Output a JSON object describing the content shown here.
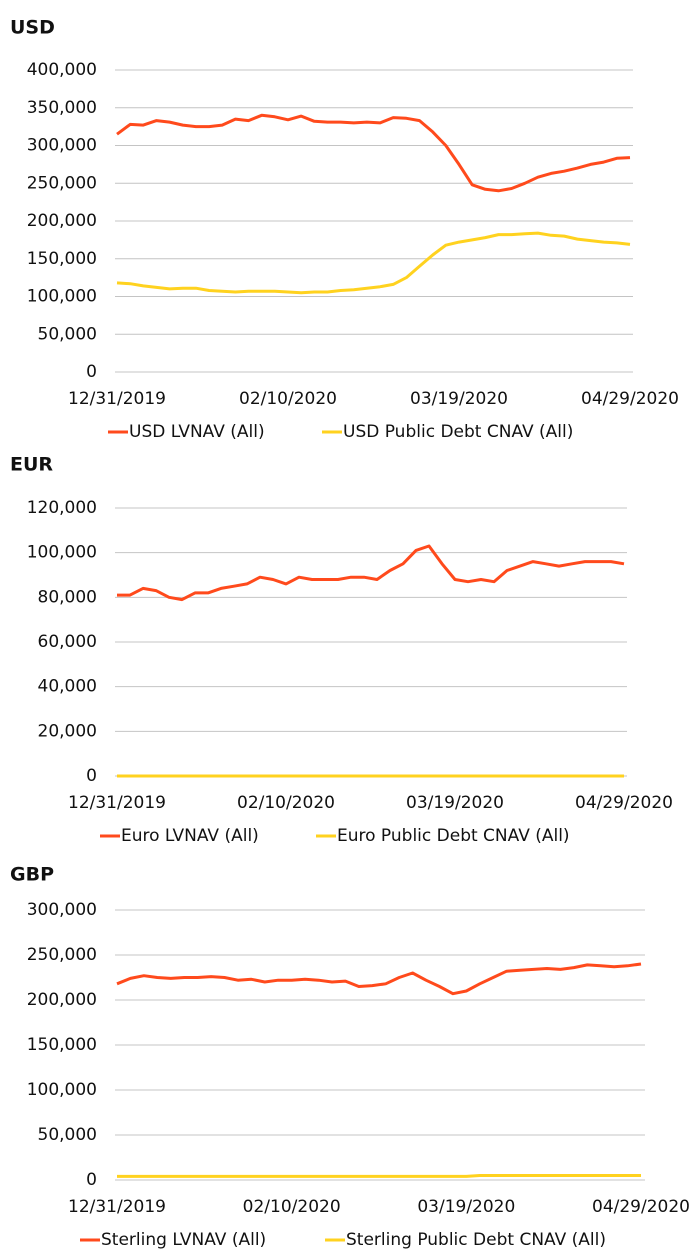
{
  "chart_data": [
    {
      "type": "line",
      "title": "USD",
      "categories": [
        "12/31/2019",
        null,
        null,
        null,
        null,
        null,
        null,
        null,
        null,
        null,
        null,
        null,
        null,
        "02/10/2020",
        null,
        null,
        null,
        null,
        null,
        null,
        null,
        null,
        null,
        null,
        null,
        null,
        "03/19/2020",
        null,
        null,
        null,
        null,
        null,
        null,
        null,
        null,
        null,
        null,
        null,
        null,
        "04/29/2020"
      ],
      "series": [
        {
          "name": "USD LVNAV (All)",
          "color": "#ff4a1c",
          "values": [
            315000,
            328000,
            327000,
            333000,
            331000,
            327000,
            325000,
            325000,
            327000,
            335000,
            333000,
            340000,
            338000,
            334000,
            339000,
            332000,
            331000,
            331000,
            330000,
            331000,
            330000,
            337000,
            336000,
            333000,
            318000,
            300000,
            275000,
            248000,
            242000,
            240000,
            243000,
            250000,
            258000,
            263000,
            266000,
            270000,
            275000,
            278000,
            283000,
            284000
          ]
        },
        {
          "name": "USD Public Debt CNAV (All)",
          "color": "#ffd21f",
          "values": [
            118000,
            117000,
            114000,
            112000,
            110000,
            111000,
            111000,
            108000,
            107000,
            106000,
            107000,
            107000,
            107000,
            106000,
            105000,
            106000,
            106000,
            108000,
            109000,
            111000,
            113000,
            116000,
            125000,
            140000,
            155000,
            168000,
            172000,
            175000,
            178000,
            182000,
            182000,
            183000,
            184000,
            181000,
            180000,
            176000,
            174000,
            172000,
            171000,
            169000
          ]
        }
      ],
      "ylim": [
        0,
        400000
      ],
      "yticks": [
        0,
        {
          "value": 50000,
          "label": "50,000"
        },
        {
          "value": 100000,
          "label": "100,000"
        },
        {
          "value": 150000,
          "label": "150,000"
        },
        {
          "value": 200000,
          "label": "200,000"
        },
        {
          "value": 250000,
          "label": "250,000"
        },
        {
          "value": 300000,
          "label": "300,000"
        },
        {
          "value": 350000,
          "label": "350,000"
        },
        {
          "value": 400000,
          "label": "400,000"
        }
      ],
      "grid": true,
      "legend": "bottom"
    },
    {
      "type": "line",
      "title": "EUR",
      "categories": [
        "12/31/2019",
        null,
        null,
        null,
        null,
        null,
        null,
        null,
        null,
        null,
        null,
        null,
        null,
        "02/10/2020",
        null,
        null,
        null,
        null,
        null,
        null,
        null,
        null,
        null,
        null,
        null,
        null,
        "03/19/2020",
        null,
        null,
        null,
        null,
        null,
        null,
        null,
        null,
        null,
        null,
        null,
        null,
        "04/29/2020"
      ],
      "series": [
        {
          "name": "Euro LVNAV (All)",
          "color": "#ff4a1c",
          "values": [
            81000,
            81000,
            84000,
            83000,
            80000,
            79000,
            82000,
            82000,
            84000,
            85000,
            86000,
            89000,
            88000,
            86000,
            89000,
            88000,
            88000,
            88000,
            89000,
            89000,
            88000,
            92000,
            95000,
            101000,
            103000,
            95000,
            88000,
            87000,
            88000,
            87000,
            92000,
            94000,
            96000,
            95000,
            94000,
            95000,
            96000,
            96000,
            96000,
            95000
          ]
        },
        {
          "name": "Euro Public Debt CNAV (All)",
          "color": "#ffd21f",
          "values": [
            0,
            0,
            0,
            0,
            0,
            0,
            0,
            0,
            0,
            0,
            0,
            0,
            0,
            0,
            0,
            0,
            0,
            0,
            0,
            0,
            0,
            0,
            0,
            0,
            0,
            0,
            0,
            0,
            0,
            0,
            0,
            0,
            0,
            0,
            0,
            0,
            0,
            0,
            0,
            0
          ]
        }
      ],
      "ylim": [
        0,
        120000
      ],
      "yticks": [
        0,
        {
          "value": 20000,
          "label": "20,000"
        },
        {
          "value": 40000,
          "label": "40,000"
        },
        {
          "value": 60000,
          "label": "60,000"
        },
        {
          "value": 80000,
          "label": "80,000"
        },
        {
          "value": 100000,
          "label": "100,000"
        },
        {
          "value": 120000,
          "label": "120,000"
        }
      ],
      "grid": true,
      "legend": "bottom"
    },
    {
      "type": "line",
      "title": "GBP",
      "categories": [
        "12/31/2019",
        null,
        null,
        null,
        null,
        null,
        null,
        null,
        null,
        null,
        null,
        null,
        null,
        "02/10/2020",
        null,
        null,
        null,
        null,
        null,
        null,
        null,
        null,
        null,
        null,
        null,
        null,
        "03/19/2020",
        null,
        null,
        null,
        null,
        null,
        null,
        null,
        null,
        null,
        null,
        null,
        null,
        "04/29/2020"
      ],
      "series": [
        {
          "name": "Sterling LVNAV (All)",
          "color": "#ff4a1c",
          "values": [
            218000,
            224000,
            227000,
            225000,
            224000,
            225000,
            225000,
            226000,
            225000,
            222000,
            223000,
            220000,
            222000,
            222000,
            223000,
            222000,
            220000,
            221000,
            215000,
            216000,
            218000,
            225000,
            230000,
            222000,
            215000,
            207000,
            210000,
            218000,
            225000,
            232000,
            233000,
            234000,
            235000,
            234000,
            236000,
            239000,
            238000,
            237000,
            238000,
            240000
          ]
        },
        {
          "name": "Sterling Public Debt CNAV (All)",
          "color": "#ffd21f",
          "values": [
            4000,
            4000,
            4000,
            4000,
            4000,
            4000,
            4000,
            4000,
            4000,
            4000,
            4000,
            4000,
            4000,
            4000,
            4000,
            4000,
            4000,
            4000,
            4000,
            4000,
            4000,
            4000,
            4000,
            4000,
            4000,
            4000,
            4000,
            5000,
            5000,
            5000,
            5000,
            5000,
            5000,
            5000,
            5000,
            5000,
            5000,
            5000,
            5000,
            5000
          ]
        }
      ],
      "ylim": [
        0,
        300000
      ],
      "yticks": [
        0,
        {
          "value": 50000,
          "label": "50,000"
        },
        {
          "value": 100000,
          "label": "100,000"
        },
        {
          "value": 150000,
          "label": "150,000"
        },
        {
          "value": 200000,
          "label": "200,000"
        },
        {
          "value": 250000,
          "label": "250,000"
        },
        {
          "value": 300000,
          "label": "300,000"
        }
      ],
      "grid": true,
      "legend": "bottom"
    }
  ]
}
